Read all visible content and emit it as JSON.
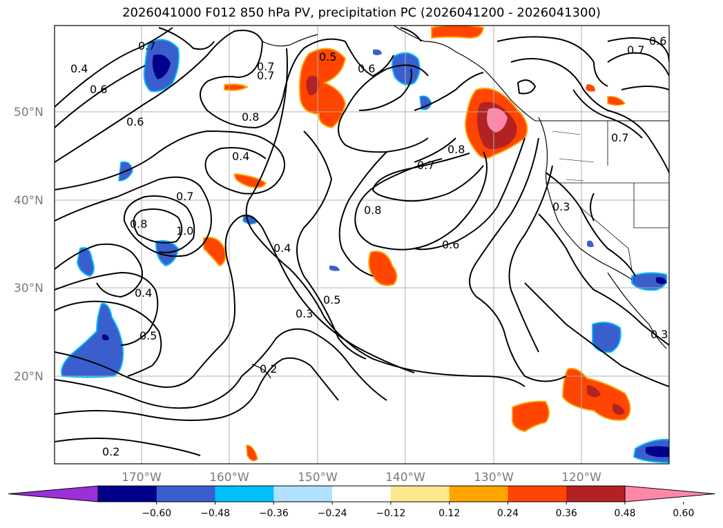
{
  "title": "2026041000 F012 850 hPa PV, precipitation PC (2026041200 - 2026041300)",
  "map": {
    "lat_labels": [
      "50°N",
      "40°N",
      "30°N",
      "20°N"
    ],
    "lon_labels": [
      "170°W",
      "160°W",
      "150°W",
      "140°W",
      "130°W",
      "120°W"
    ],
    "contour_labels": [
      "0.7",
      "0.4",
      "0.6",
      "0.6",
      "0.7",
      "0.8",
      "0.4",
      "0.7",
      "1.0",
      "0.8",
      "0.4",
      "0.5",
      "0.3",
      "0.5",
      "0.2",
      "0.2",
      "0.4",
      "0.5",
      "0.6",
      "0.8",
      "0.7",
      "0.8",
      "0.6",
      "0.7",
      "0.3",
      "0.3",
      "0.7",
      "0.6",
      "0.7"
    ]
  },
  "colorbar": {
    "ticks": [
      "−0.60",
      "−0.48",
      "−0.36",
      "−0.24",
      "−0.12",
      "0.12",
      "0.24",
      "0.36",
      "0.48",
      "0.60"
    ],
    "colors": [
      "#9b30d9",
      "#00008b",
      "#3a5fcd",
      "#00bfff",
      "#b0e2ff",
      "#ffffff",
      "#fde98c",
      "#ffa500",
      "#ff4500",
      "#b22222",
      "#ff88aa"
    ]
  }
}
